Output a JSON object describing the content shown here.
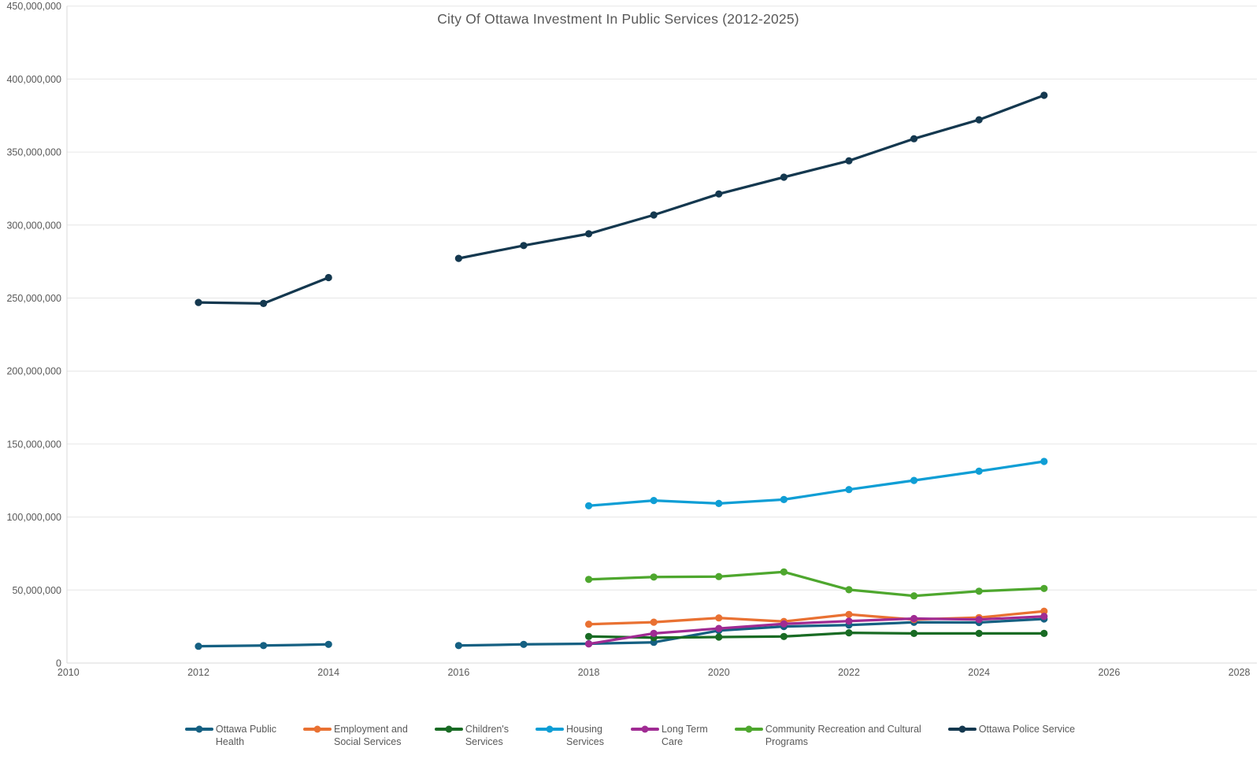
{
  "chart_data": {
    "type": "line",
    "title": "City Of Ottawa Investment In Public Services (2012-2025)",
    "xlabel": "",
    "ylabel": "",
    "grid": true,
    "legend_position": "bottom",
    "xlim": [
      2010,
      2028
    ],
    "ylim": [
      0,
      450000000
    ],
    "x_tick_years": [
      2010,
      2012,
      2014,
      2016,
      2018,
      2020,
      2022,
      2024,
      2026,
      2028
    ],
    "y_tick_step": 50000000,
    "axis_text_color": "#595959",
    "gridline_color": "#e6e6e6",
    "axis_line_color": "#d9d9d9",
    "x": [
      2012,
      2013,
      2014,
      2015,
      2016,
      2017,
      2018,
      2019,
      2020,
      2021,
      2022,
      2023,
      2024,
      2025
    ],
    "series": [
      {
        "name": "Ottawa Public Health",
        "legend_lines": [
          "Ottawa Public",
          "Health"
        ],
        "color": "#156082",
        "values": [
          11500000,
          12000000,
          12800000,
          null,
          12000000,
          12800000,
          13200000,
          14200000,
          22200000,
          25000000,
          26000000,
          27900000,
          27800000,
          30200000
        ]
      },
      {
        "name": "Employment and Social Services",
        "legend_lines": [
          "Employment and",
          "Social Services"
        ],
        "color": "#e97132",
        "values": [
          null,
          null,
          null,
          null,
          null,
          null,
          26600000,
          28000000,
          30900000,
          28500000,
          33300000,
          29800000,
          31100000,
          35500000
        ]
      },
      {
        "name": "Children's Services",
        "legend_lines": [
          "Children's",
          "Services"
        ],
        "color": "#196b24",
        "values": [
          null,
          null,
          null,
          null,
          null,
          null,
          18200000,
          17400000,
          17800000,
          18200000,
          20700000,
          20300000,
          20300000,
          20300000
        ]
      },
      {
        "name": "Housing Services",
        "legend_lines": [
          "Housing",
          "Services"
        ],
        "color": "#0f9ed5",
        "values": [
          null,
          null,
          null,
          null,
          null,
          null,
          107700000,
          111300000,
          109300000,
          112000000,
          118800000,
          125100000,
          131400000,
          138100000
        ]
      },
      {
        "name": "Long Term Care",
        "legend_lines": [
          "Long Term",
          "Care"
        ],
        "color": "#a02b93",
        "values": [
          null,
          null,
          null,
          null,
          null,
          null,
          13100000,
          20300000,
          23700000,
          26800000,
          28700000,
          30500000,
          29800000,
          32000000
        ]
      },
      {
        "name": "Community Recreation and Cultural Programs",
        "legend_lines": [
          "Community Recreation and Cultural",
          "Programs"
        ],
        "color": "#4ea72e",
        "values": [
          null,
          null,
          null,
          null,
          null,
          null,
          57300000,
          58900000,
          59200000,
          62400000,
          50200000,
          46000000,
          49200000,
          51100000
        ]
      },
      {
        "name": "Ottawa Police Service",
        "legend_lines": [
          "Ottawa Police Service"
        ],
        "color": "#14384f",
        "values": [
          247000000,
          246300000,
          264000000,
          null,
          277200000,
          286000000,
          294000000,
          306900000,
          321300000,
          332800000,
          344000000,
          359100000,
          372100000,
          388900000
        ]
      }
    ]
  }
}
